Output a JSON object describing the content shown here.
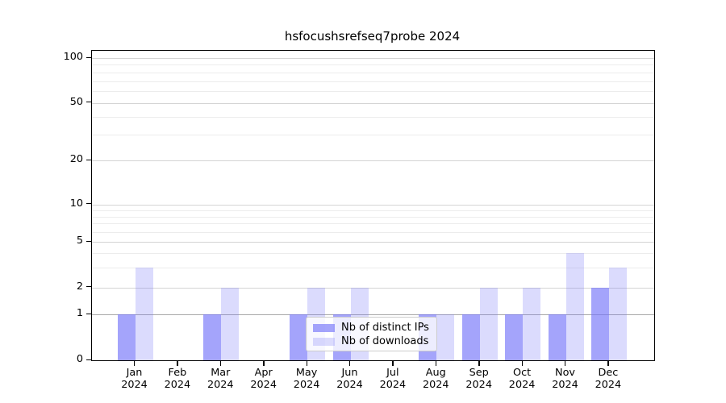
{
  "title": "hsfocushsrefseq7probe 2024",
  "colors": {
    "ips": "rgba(112,112,248,0.64)",
    "downloads": "rgba(112,112,248,0.25)",
    "grid_major": "#d4d4d4",
    "grid_minor": "#ececec",
    "grid_unit_line": "#a8a8a8",
    "axis": "#000000",
    "text": "#000000",
    "legend_bg": "rgba(255,255,255,0.8)",
    "legend_border": "#cccccc"
  },
  "legend": {
    "items": [
      {
        "key": "ips",
        "label": "Nb of distinct IPs"
      },
      {
        "key": "downloads",
        "label": "Nb of downloads"
      }
    ]
  },
  "chart_data": {
    "type": "bar",
    "title": "hsfocushsrefseq7probe 2024",
    "categories": [
      "Jan 2024",
      "Feb 2024",
      "Mar 2024",
      "Apr 2024",
      "May 2024",
      "Jun 2024",
      "Jul 2024",
      "Aug 2024",
      "Sep 2024",
      "Oct 2024",
      "Nov 2024",
      "Dec 2024"
    ],
    "series": [
      {
        "name": "Nb of distinct IPs",
        "color_key": "ips",
        "values": [
          1,
          0,
          1,
          0,
          1,
          1,
          0,
          1,
          1,
          1,
          1,
          2
        ]
      },
      {
        "name": "Nb of downloads",
        "color_key": "downloads",
        "values": [
          3,
          0,
          2,
          0,
          2,
          2,
          0,
          1,
          2,
          2,
          4,
          3
        ]
      }
    ],
    "xlabel": "",
    "ylabel": "",
    "yticks_major": [
      100,
      50,
      20,
      10,
      5,
      2,
      1,
      0
    ],
    "yticks_minor": [
      90,
      80,
      70,
      60,
      40,
      30,
      9,
      8,
      7,
      6,
      4,
      3
    ],
    "yscale": "log-like",
    "ylim": [
      0,
      110
    ],
    "grid": true,
    "legend_position": "lower center"
  }
}
